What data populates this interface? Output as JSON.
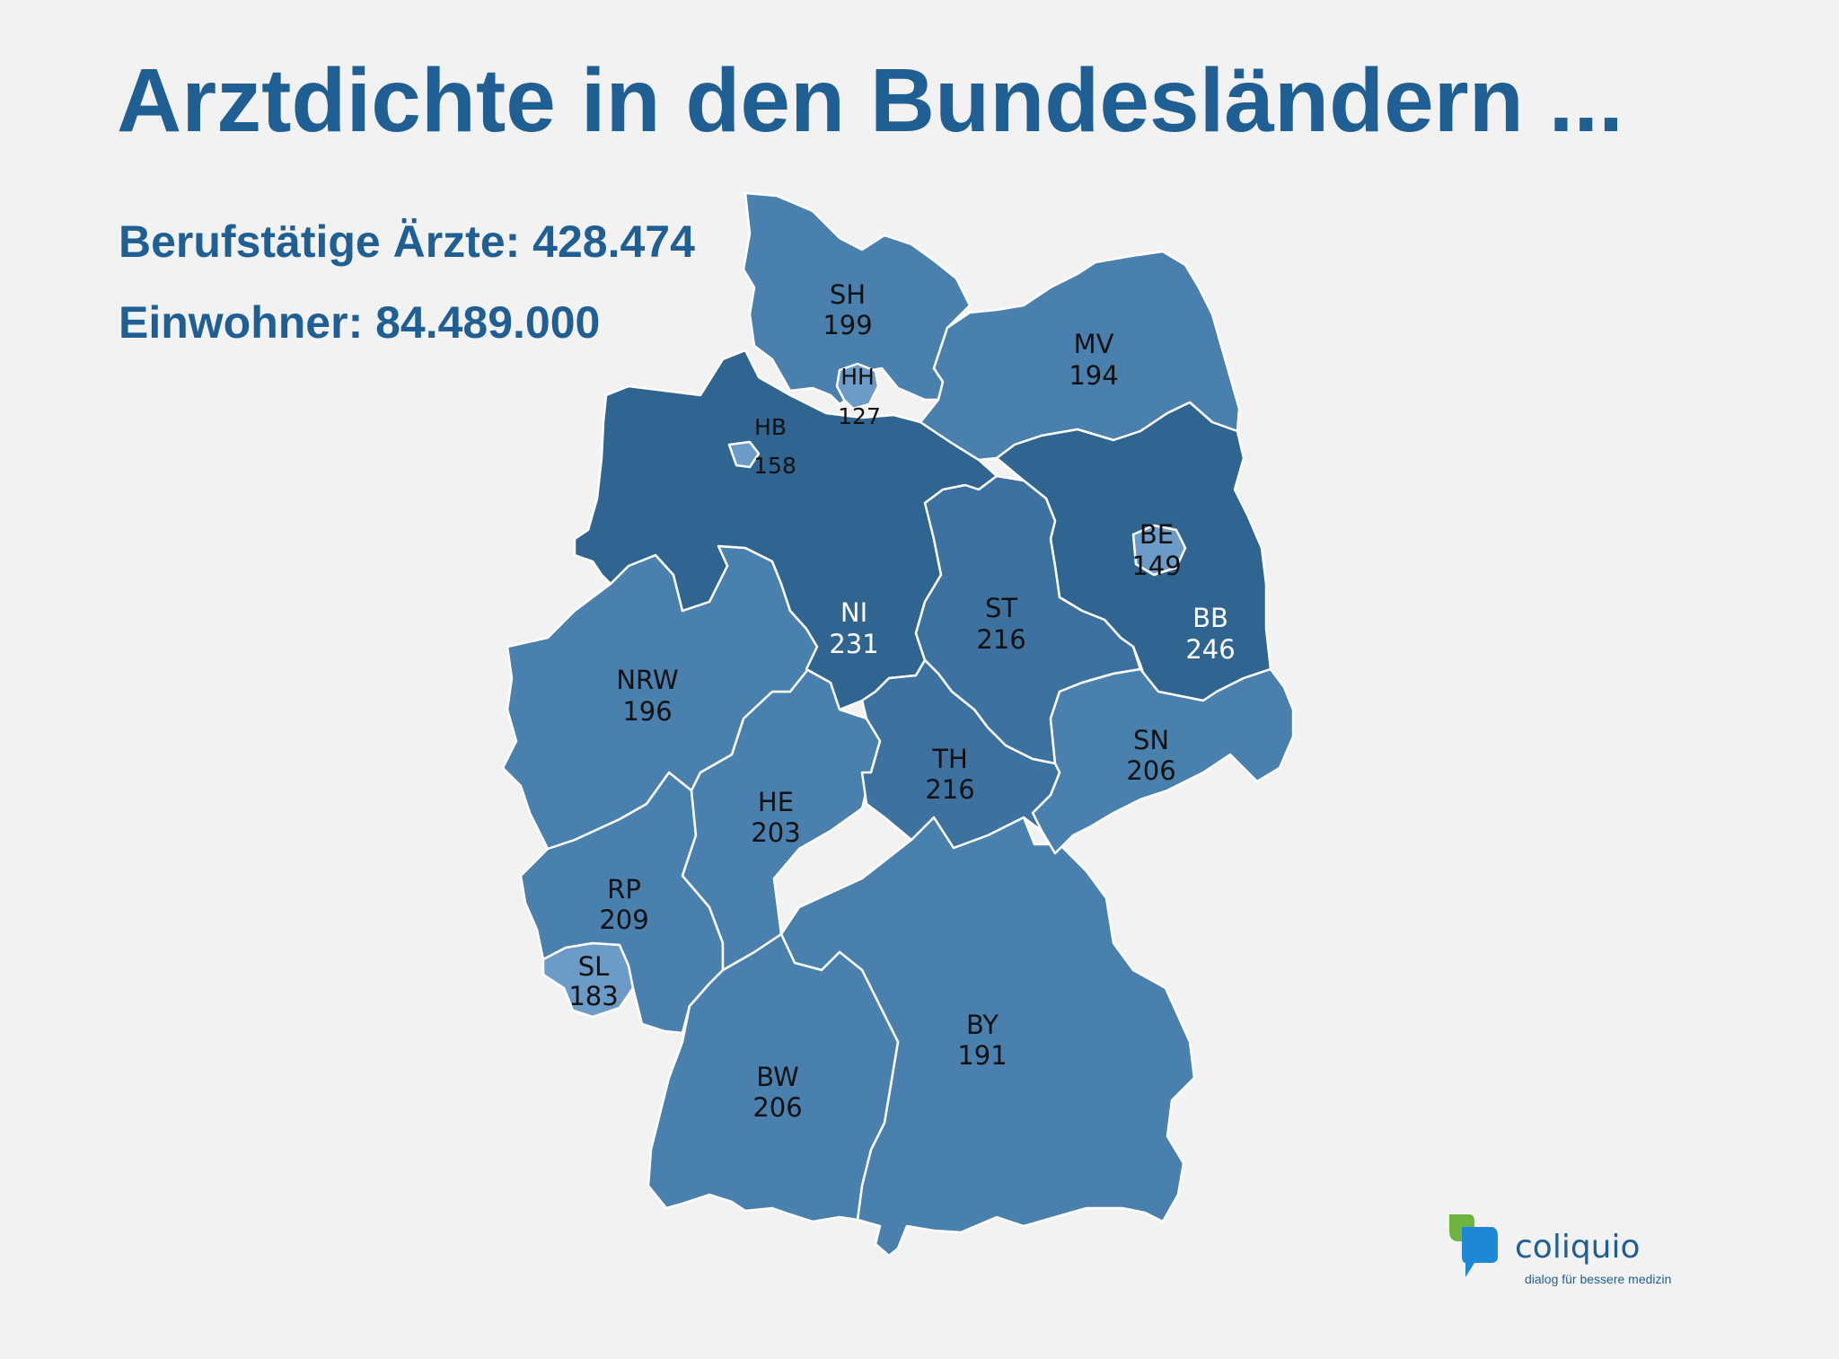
{
  "title": "Arztdichte in den Bundesländern ...",
  "stats": {
    "doctors": "Berufstätige Ärzte: 428.474",
    "population": "Einwohner: 84.489.000"
  },
  "colors": {
    "dark": "#2f6590",
    "mid": "#3d72a0",
    "light": "#4a80ad",
    "pale": "#6b9bc6",
    "title": "#1f5f93",
    "logo_green": "#6cb33f",
    "logo_blue": "#1e88d8"
  },
  "states": [
    {
      "code": "SH",
      "value": "199"
    },
    {
      "code": "HH",
      "value": "127"
    },
    {
      "code": "MV",
      "value": "194"
    },
    {
      "code": "HB",
      "value": "158"
    },
    {
      "code": "NI",
      "value": "231"
    },
    {
      "code": "BE",
      "value": "149"
    },
    {
      "code": "BB",
      "value": "246"
    },
    {
      "code": "ST",
      "value": "216"
    },
    {
      "code": "NRW",
      "value": "196"
    },
    {
      "code": "SN",
      "value": "206"
    },
    {
      "code": "TH",
      "value": "216"
    },
    {
      "code": "HE",
      "value": "203"
    },
    {
      "code": "RP",
      "value": "209"
    },
    {
      "code": "SL",
      "value": "183"
    },
    {
      "code": "BW",
      "value": "206"
    },
    {
      "code": "BY",
      "value": "191"
    }
  ],
  "logo": {
    "name": "coliquio",
    "tagline": "dialog für bessere medizin"
  }
}
